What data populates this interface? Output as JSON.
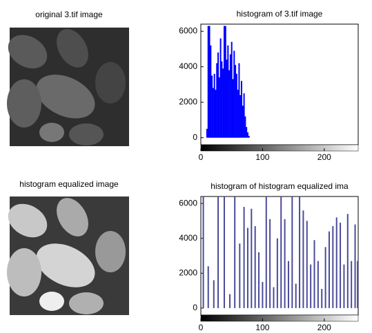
{
  "images": [
    {
      "title": "original 3.tif image"
    },
    {
      "title": "histogram equalized image"
    }
  ],
  "chart_data": [
    {
      "type": "stem",
      "title": "histogram of 3.tif image",
      "color": "#0000ff",
      "x": [
        10,
        12,
        14,
        16,
        18,
        20,
        22,
        24,
        26,
        28,
        30,
        32,
        34,
        36,
        38,
        40,
        42,
        44,
        46,
        48,
        50,
        52,
        54,
        56,
        58,
        60,
        62,
        64,
        66,
        68,
        70,
        72,
        74,
        76,
        78
      ],
      "values": [
        500,
        6300,
        6300,
        5200,
        3500,
        2800,
        3600,
        2700,
        4200,
        4800,
        3400,
        5600,
        4300,
        3900,
        6300,
        6300,
        4400,
        5200,
        3800,
        4700,
        5400,
        3300,
        4900,
        4100,
        3600,
        2700,
        4200,
        2400,
        3200,
        1800,
        2500,
        1200,
        600,
        300,
        100
      ],
      "xlim": [
        0,
        255
      ],
      "xticks": [
        0,
        100,
        200
      ],
      "ylim": [
        -400,
        6400
      ],
      "yticks": [
        0,
        2000,
        4000,
        6000
      ]
    },
    {
      "type": "stem",
      "title": "histogram of histogram equalized ima",
      "color": "#4a4a9a",
      "x": [
        4,
        12,
        21,
        28,
        38,
        47,
        55,
        63,
        70,
        76,
        82,
        88,
        94,
        100,
        106,
        112,
        118,
        124,
        130,
        136,
        142,
        148,
        154,
        160,
        166,
        172,
        178,
        184,
        190,
        196,
        202,
        208,
        214,
        220,
        226,
        232,
        238,
        244,
        250,
        254
      ],
      "values": [
        6400,
        2400,
        1600,
        6400,
        6400,
        800,
        6400,
        3700,
        5800,
        4600,
        5700,
        4700,
        3200,
        1500,
        6400,
        5100,
        1200,
        4000,
        6400,
        5100,
        2700,
        6400,
        1400,
        6400,
        5600,
        5000,
        2500,
        3900,
        2700,
        1100,
        3500,
        4400,
        4700,
        5200,
        4900,
        2500,
        5400,
        2700,
        4800,
        2700
      ],
      "xlim": [
        0,
        255
      ],
      "xticks": [
        0,
        100,
        200
      ],
      "ylim": [
        -400,
        6400
      ],
      "yticks": [
        0,
        2000,
        4000,
        6000
      ]
    }
  ]
}
